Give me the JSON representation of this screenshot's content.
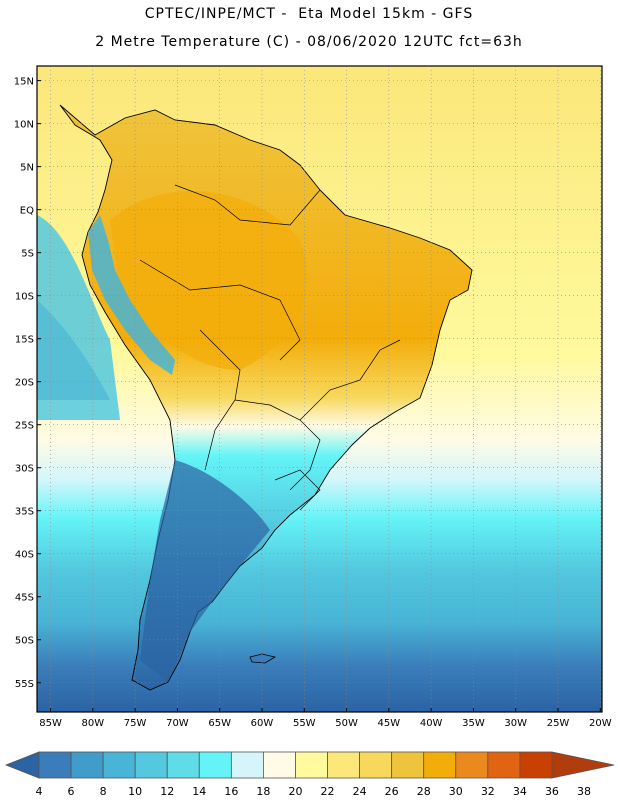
{
  "header": {
    "title_line1": "CPTEC/INPE/MCT -  Eta Model 15km - GFS",
    "title_line2": "2 Metre Temperature (C) - 08/06/2020 12UTC fct=63h"
  },
  "map": {
    "region": "South America",
    "lat_labels": [
      "15N",
      "10N",
      "5N",
      "EQ",
      "5S",
      "10S",
      "15S",
      "20S",
      "25S",
      "30S",
      "35S",
      "40S",
      "45S",
      "50S",
      "55S"
    ],
    "lon_labels": [
      "85W",
      "80W",
      "75W",
      "70W",
      "65W",
      "60W",
      "55W",
      "50W",
      "45W",
      "40W",
      "35W",
      "30W",
      "25W",
      "20W"
    ]
  },
  "colorbar": {
    "labels": [
      "4",
      "6",
      "8",
      "10",
      "12",
      "14",
      "16",
      "18",
      "20",
      "22",
      "24",
      "26",
      "28",
      "30",
      "32",
      "34",
      "36",
      "38"
    ],
    "colors": [
      "#2b63a3",
      "#3a7dba",
      "#3f9ccb",
      "#48b4d6",
      "#53c8df",
      "#5fdce8",
      "#64f4f7",
      "#d4f6fb",
      "#fffbe6",
      "#fffa9e",
      "#fbe77a",
      "#f7d85d",
      "#efc43d",
      "#f3ad0b",
      "#ea8a1e",
      "#e06412",
      "#c84004",
      "#b13c0d"
    ]
  }
}
